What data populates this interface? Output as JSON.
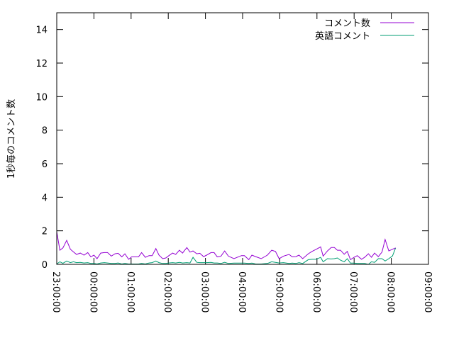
{
  "chart_data": {
    "type": "line",
    "title": "",
    "xlabel": "",
    "ylabel": "1秒毎のコメント数",
    "ylim": [
      0,
      15
    ],
    "yticks": [
      "0",
      "2",
      "4",
      "6",
      "8",
      "10",
      "12",
      "14"
    ],
    "xlim": [
      "23:00:00",
      "09:00:00"
    ],
    "xticks": [
      "23:00:00",
      "00:00:00",
      "01:00:00",
      "02:00:00",
      "03:00:00",
      "04:00:00",
      "05:00:00",
      "06:00:00",
      "07:00:00",
      "08:00:00",
      "09:00:00"
    ],
    "grid": false,
    "legend": "top-right",
    "x": [
      "23:00",
      "23:05",
      "23:10",
      "23:16",
      "23:22",
      "23:27",
      "23:32",
      "23:38",
      "23:44",
      "23:50",
      "23:55",
      "00:00",
      "00:05",
      "00:11",
      "00:17",
      "00:22",
      "00:28",
      "00:34",
      "00:39",
      "00:45",
      "00:50",
      "00:56",
      "01:01",
      "01:06",
      "01:12",
      "01:17",
      "01:23",
      "01:29",
      "01:34",
      "01:40",
      "01:45",
      "01:51",
      "01:56",
      "02:01",
      "02:07",
      "02:12",
      "02:18",
      "02:23",
      "02:30",
      "02:35",
      "02:40",
      "02:46",
      "02:51",
      "02:57",
      "03:02",
      "03:09",
      "03:14",
      "03:19",
      "03:25",
      "03:31",
      "03:37",
      "03:46",
      "03:58",
      "04:03",
      "04:10",
      "04:15",
      "04:21",
      "04:30",
      "04:40",
      "04:47",
      "04:53",
      "04:59",
      "05:06",
      "05:15",
      "05:20",
      "05:26",
      "05:31",
      "05:37",
      "05:46",
      "05:52",
      "05:59",
      "06:06",
      "06:10",
      "06:17",
      "06:23",
      "06:28",
      "06:33",
      "06:38",
      "06:44",
      "06:49",
      "06:54",
      "07:00",
      "07:05",
      "07:12",
      "07:17",
      "07:23",
      "07:28",
      "07:33",
      "07:39",
      "07:45",
      "07:50",
      "07:56",
      "08:02",
      "08:07"
    ],
    "series": [
      {
        "name": "コメント数",
        "color": "#9400d3",
        "values": [
          1.95,
          0.84,
          0.98,
          1.43,
          0.9,
          0.74,
          0.59,
          0.67,
          0.55,
          0.7,
          0.45,
          0.55,
          0.34,
          0.67,
          0.7,
          0.7,
          0.49,
          0.63,
          0.66,
          0.45,
          0.63,
          0.3,
          0.45,
          0.45,
          0.45,
          0.7,
          0.42,
          0.52,
          0.52,
          0.94,
          0.55,
          0.34,
          0.38,
          0.52,
          0.67,
          0.59,
          0.84,
          0.67,
          1.0,
          0.73,
          0.8,
          0.63,
          0.66,
          0.46,
          0.55,
          0.7,
          0.7,
          0.45,
          0.48,
          0.8,
          0.49,
          0.34,
          0.52,
          0.52,
          0.28,
          0.55,
          0.46,
          0.34,
          0.55,
          0.84,
          0.77,
          0.34,
          0.49,
          0.59,
          0.45,
          0.46,
          0.55,
          0.34,
          0.63,
          0.77,
          0.9,
          1.04,
          0.49,
          0.8,
          1.0,
          1.0,
          0.84,
          0.84,
          0.6,
          0.77,
          0.28,
          0.42,
          0.52,
          0.3,
          0.42,
          0.63,
          0.42,
          0.67,
          0.46,
          0.73,
          1.48,
          0.8,
          0.9,
          0.98
        ]
      },
      {
        "name": "英語コメント",
        "color": "#009e73",
        "values": [
          0.02,
          0.15,
          0.06,
          0.2,
          0.1,
          0.15,
          0.1,
          0.12,
          0.08,
          0.1,
          0.05,
          0.05,
          0.02,
          0.08,
          0.1,
          0.08,
          0.05,
          0.05,
          0.08,
          0.02,
          0.05,
          0.02,
          0.02,
          0.02,
          0.02,
          0.05,
          0.02,
          0.08,
          0.1,
          0.2,
          0.1,
          0.05,
          0.05,
          0.08,
          0.1,
          0.08,
          0.12,
          0.08,
          0.1,
          0.08,
          0.42,
          0.12,
          0.1,
          0.1,
          0.1,
          0.12,
          0.08,
          0.08,
          0.05,
          0.12,
          0.05,
          0.07,
          0.07,
          0.07,
          0.05,
          0.07,
          0.02,
          0.02,
          0.05,
          0.15,
          0.12,
          0.08,
          0.1,
          0.05,
          0.07,
          0.05,
          0.1,
          0.05,
          0.28,
          0.3,
          0.3,
          0.42,
          0.15,
          0.34,
          0.32,
          0.34,
          0.38,
          0.25,
          0.15,
          0.34,
          0.07,
          0.07,
          0.05,
          0.05,
          0.05,
          0.0,
          0.15,
          0.12,
          0.34,
          0.34,
          0.2,
          0.34,
          0.5,
          0.98
        ]
      }
    ]
  }
}
